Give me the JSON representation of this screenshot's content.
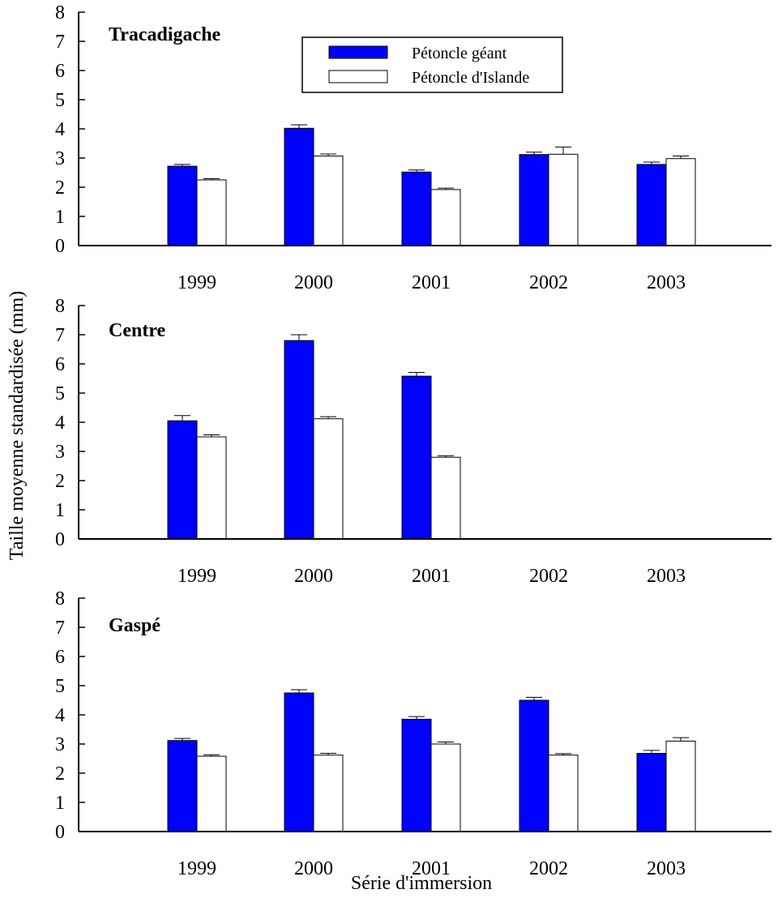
{
  "ylabel": "Taille moyenne standardisée (mm)",
  "xlabel": "Série d'immersion",
  "legend": {
    "placement": "top-center",
    "entries": [
      {
        "label": "Pétoncle géant",
        "color": "#0000ff"
      },
      {
        "label": "Pétoncle d'Islande",
        "color": "#ffffff"
      }
    ]
  },
  "chart_data": [
    {
      "type": "bar",
      "title": "Tracadigache",
      "categories": [
        "1999",
        "2000",
        "2001",
        "2002",
        "2003"
      ],
      "ylim": [
        0,
        8
      ],
      "yticks": [
        "0",
        "1",
        "2",
        "3",
        "4",
        "5",
        "6",
        "7",
        "8"
      ],
      "grid": false,
      "series": [
        {
          "name": "Pétoncle géant",
          "color": "#0000ff",
          "values": [
            2.72,
            4.02,
            2.52,
            3.12,
            2.78
          ],
          "errors": [
            0.06,
            0.12,
            0.07,
            0.08,
            0.08
          ]
        },
        {
          "name": "Pétoncle d'Islande",
          "color": "#ffffff",
          "values": [
            2.25,
            3.07,
            1.92,
            3.13,
            2.98
          ],
          "errors": [
            0.04,
            0.07,
            0.05,
            0.25,
            0.09
          ]
        }
      ]
    },
    {
      "type": "bar",
      "title": "Centre",
      "categories": [
        "1999",
        "2000",
        "2001",
        "2002",
        "2003"
      ],
      "ylim": [
        0,
        8
      ],
      "yticks": [
        "0",
        "1",
        "2",
        "3",
        "4",
        "5",
        "6",
        "7",
        "8"
      ],
      "grid": false,
      "series": [
        {
          "name": "Pétoncle géant",
          "color": "#0000ff",
          "values": [
            4.05,
            6.8,
            5.58,
            null,
            null
          ],
          "errors": [
            0.18,
            0.2,
            0.13,
            null,
            null
          ]
        },
        {
          "name": "Pétoncle d'Islande",
          "color": "#ffffff",
          "values": [
            3.5,
            4.12,
            2.8,
            null,
            null
          ],
          "errors": [
            0.07,
            0.07,
            0.05,
            null,
            null
          ]
        }
      ]
    },
    {
      "type": "bar",
      "title": "Gaspé",
      "categories": [
        "1999",
        "2000",
        "2001",
        "2002",
        "2003"
      ],
      "ylim": [
        0,
        8
      ],
      "yticks": [
        "0",
        "1",
        "2",
        "3",
        "4",
        "5",
        "6",
        "7",
        "8"
      ],
      "grid": false,
      "series": [
        {
          "name": "Pétoncle géant",
          "color": "#0000ff",
          "values": [
            3.12,
            4.75,
            3.85,
            4.5,
            2.68
          ],
          "errors": [
            0.07,
            0.11,
            0.09,
            0.1,
            0.1
          ]
        },
        {
          "name": "Pétoncle d'Islande",
          "color": "#ffffff",
          "values": [
            2.58,
            2.62,
            3.0,
            2.62,
            3.1
          ],
          "errors": [
            0.05,
            0.06,
            0.07,
            0.05,
            0.12
          ]
        }
      ]
    }
  ]
}
